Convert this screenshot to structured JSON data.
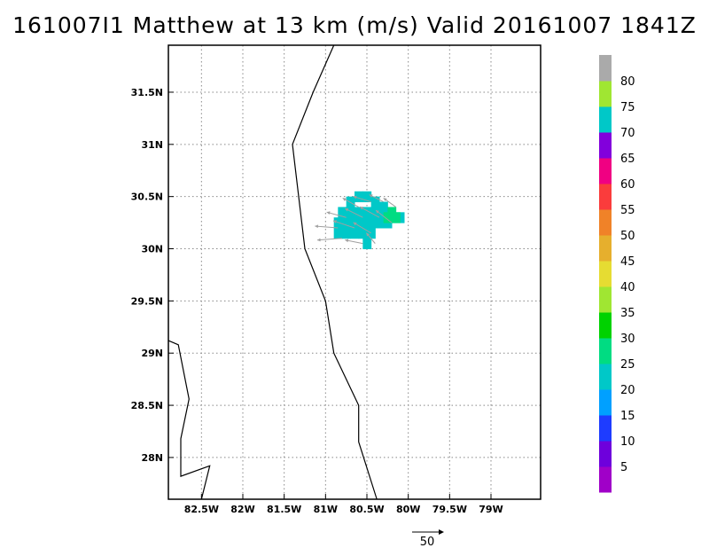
{
  "title": "161007I1 Matthew at 13 km (m/s) Valid 20161007 1841Z",
  "axes": {
    "x_ticks": [
      "82.5W",
      "82W",
      "81.5W",
      "81W",
      "80.5W",
      "80W",
      "79.5W",
      "79W"
    ],
    "y_ticks": [
      "31.5N",
      "31N",
      "30.5N",
      "30N",
      "29.5N",
      "29N",
      "28.5N",
      "28N"
    ],
    "lon_range": [
      -82.9,
      -78.4
    ],
    "lat_range": [
      27.6,
      31.95
    ],
    "grid": true
  },
  "colorbar": {
    "labels": [
      "5",
      "10",
      "15",
      "20",
      "25",
      "30",
      "35",
      "40",
      "45",
      "50",
      "55",
      "60",
      "65",
      "70",
      "75",
      "80"
    ],
    "colors": [
      "#a000c8",
      "#6e00dc",
      "#1e3cff",
      "#00a0ff",
      "#00c8c8",
      "#00dc82",
      "#00d200",
      "#a0e632",
      "#e6dc32",
      "#e6af2d",
      "#f08228",
      "#fa3c3c",
      "#f00082",
      "#8200dc",
      "#00c8c8",
      "#a0e632",
      "#aaaaaa"
    ]
  },
  "coastline": [
    [
      -82.9,
      29.12
    ],
    [
      -82.78,
      29.08
    ],
    [
      -82.65,
      28.56
    ],
    [
      -82.75,
      28.18
    ],
    [
      -82.75,
      27.82
    ],
    [
      -82.4,
      27.92
    ],
    [
      -82.5,
      27.6
    ]
  ],
  "coastline2": [
    [
      -80.9,
      31.95
    ],
    [
      -81.15,
      31.5
    ],
    [
      -81.4,
      31.0
    ],
    [
      -81.25,
      30.0
    ],
    [
      -81.0,
      29.5
    ],
    [
      -80.9,
      29.0
    ],
    [
      -80.6,
      28.5
    ],
    [
      -80.6,
      28.15
    ],
    [
      -80.38,
      27.6
    ]
  ],
  "wind_field": {
    "speed_color": "#00c8c8",
    "high_color": "#00dc82",
    "cells": [
      [
        -80.7,
        30.45
      ],
      [
        -80.6,
        30.5
      ],
      [
        -80.5,
        30.5
      ],
      [
        -80.4,
        30.45
      ],
      [
        -80.3,
        30.4
      ],
      [
        -80.8,
        30.35
      ],
      [
        -80.7,
        30.35
      ],
      [
        -80.6,
        30.35
      ],
      [
        -80.5,
        30.35
      ],
      [
        -80.4,
        30.35
      ],
      [
        -80.3,
        30.35
      ],
      [
        -80.2,
        30.3
      ],
      [
        -80.1,
        30.3
      ],
      [
        -80.85,
        30.25
      ],
      [
        -80.75,
        30.25
      ],
      [
        -80.65,
        30.25
      ],
      [
        -80.55,
        30.25
      ],
      [
        -80.45,
        30.25
      ],
      [
        -80.35,
        30.25
      ],
      [
        -80.25,
        30.25
      ],
      [
        -80.85,
        30.15
      ],
      [
        -80.75,
        30.15
      ],
      [
        -80.65,
        30.15
      ],
      [
        -80.55,
        30.15
      ],
      [
        -80.45,
        30.15
      ],
      [
        -80.5,
        30.05
      ]
    ],
    "high_cells": [
      [
        -80.2,
        30.35
      ],
      [
        -80.15,
        30.3
      ],
      [
        -80.25,
        30.3
      ]
    ],
    "vectors": [
      [
        -80.6,
        30.4,
        -18,
        10
      ],
      [
        -80.45,
        30.45,
        -20,
        6
      ],
      [
        -80.3,
        30.45,
        -16,
        8
      ],
      [
        -80.15,
        30.4,
        -14,
        10
      ],
      [
        -80.75,
        30.3,
        -22,
        6
      ],
      [
        -80.55,
        30.3,
        -20,
        10
      ],
      [
        -80.35,
        30.3,
        -22,
        12
      ],
      [
        -80.2,
        30.25,
        -18,
        14
      ],
      [
        -80.85,
        30.2,
        -26,
        2
      ],
      [
        -80.65,
        30.2,
        -24,
        8
      ],
      [
        -80.45,
        30.15,
        -20,
        12
      ],
      [
        -80.8,
        30.1,
        -28,
        -2
      ],
      [
        -80.55,
        30.05,
        -20,
        4
      ],
      [
        -80.4,
        30.05,
        -10,
        12
      ]
    ]
  },
  "vector_legend": {
    "label": "50"
  }
}
